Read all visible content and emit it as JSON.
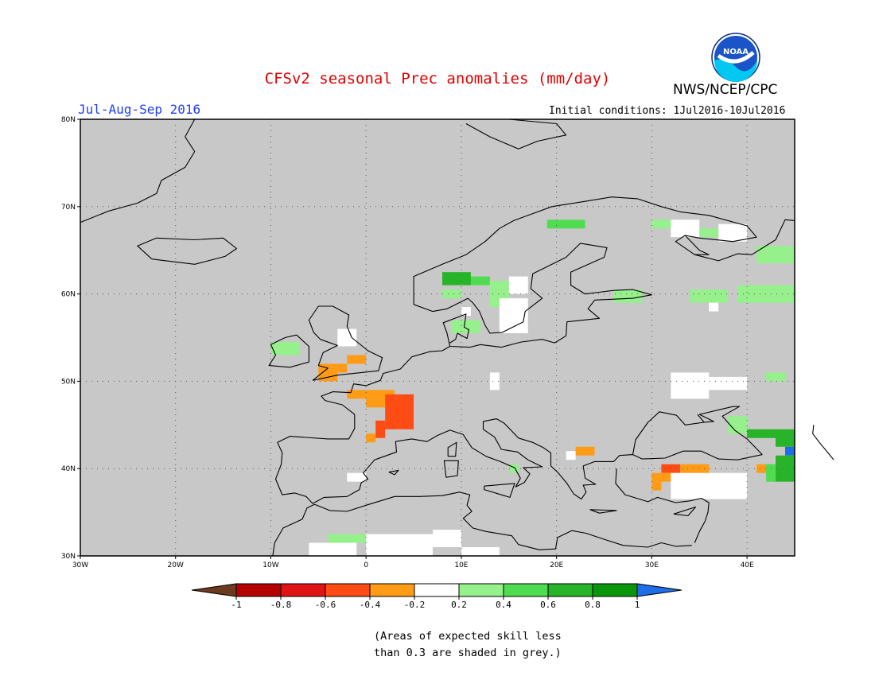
{
  "title": "CFSv2 seasonal Prec anomalies (mm/day)",
  "organization": "NWS/NCEP/CPC",
  "logo_text": "NOAA",
  "period": "Jul-Aug-Sep 2016",
  "initial_conditions": "Initial conditions: 1Jul2016-10Jul2016",
  "note_lines": [
    "(Areas of expected skill less",
    "than 0.3 are shaded in grey.)"
  ],
  "colors": {
    "title": "#e00000",
    "period": "#1c3cff",
    "grey_mask": "#c8c8c8",
    "land_outline": "#000000",
    "noaa_blue": "#1a54c8",
    "noaa_cyan": "#00c8f0"
  },
  "map": {
    "lon_range": [
      -30,
      45
    ],
    "lat_range": [
      30,
      80
    ],
    "lon_ticks": [
      {
        "value": -30,
        "label": "30W"
      },
      {
        "value": -20,
        "label": "20W"
      },
      {
        "value": -10,
        "label": "10W"
      },
      {
        "value": 0,
        "label": "0"
      },
      {
        "value": 10,
        "label": "10E"
      },
      {
        "value": 20,
        "label": "20E"
      },
      {
        "value": 30,
        "label": "30E"
      },
      {
        "value": 40,
        "label": "40E"
      }
    ],
    "lat_ticks": [
      {
        "value": 30,
        "label": "30N"
      },
      {
        "value": 40,
        "label": "40N"
      },
      {
        "value": 50,
        "label": "50N"
      },
      {
        "value": 60,
        "label": "60N"
      },
      {
        "value": 70,
        "label": "70N"
      },
      {
        "value": 80,
        "label": "80N"
      }
    ],
    "anomaly_cells": [
      {
        "lon": 8,
        "lat": 61,
        "w": 3,
        "h": 1.5,
        "cat": "g6"
      },
      {
        "lon": 11,
        "lat": 61,
        "w": 2,
        "h": 1,
        "cat": "g4"
      },
      {
        "lon": 8,
        "lat": 59.5,
        "w": 2,
        "h": 1,
        "cat": "g2"
      },
      {
        "lon": 13,
        "lat": 58.5,
        "w": 2,
        "h": 3,
        "cat": "g2"
      },
      {
        "lon": 15,
        "lat": 60,
        "w": 2,
        "h": 2,
        "cat": "white"
      },
      {
        "lon": 14,
        "lat": 55.5,
        "w": 3,
        "h": 4,
        "cat": "white"
      },
      {
        "lon": 9,
        "lat": 55.5,
        "w": 3,
        "h": 1.5,
        "cat": "g2"
      },
      {
        "lon": 10,
        "lat": 57.5,
        "w": 1,
        "h": 1,
        "cat": "white"
      },
      {
        "lon": 19,
        "lat": 67.5,
        "w": 4,
        "h": 1,
        "cat": "g4"
      },
      {
        "lon": 30,
        "lat": 67.5,
        "w": 2,
        "h": 1,
        "cat": "g2"
      },
      {
        "lon": 32,
        "lat": 66.5,
        "w": 3,
        "h": 2,
        "cat": "white"
      },
      {
        "lon": 35,
        "lat": 66.5,
        "w": 2,
        "h": 1,
        "cat": "g2"
      },
      {
        "lon": 37,
        "lat": 66,
        "w": 3,
        "h": 2,
        "cat": "white"
      },
      {
        "lon": 41,
        "lat": 63.5,
        "w": 4,
        "h": 2,
        "cat": "g2"
      },
      {
        "lon": 26,
        "lat": 59,
        "w": 3,
        "h": 1.5,
        "cat": "g2"
      },
      {
        "lon": 34,
        "lat": 59,
        "w": 4,
        "h": 1.5,
        "cat": "g2"
      },
      {
        "lon": 39,
        "lat": 59,
        "w": 6,
        "h": 2,
        "cat": "g2"
      },
      {
        "lon": 36,
        "lat": 58,
        "w": 1,
        "h": 1,
        "cat": "white"
      },
      {
        "lon": -10,
        "lat": 53,
        "w": 3,
        "h": 1.5,
        "cat": "g2"
      },
      {
        "lon": -3,
        "lat": 54,
        "w": 2,
        "h": 2,
        "cat": "white"
      },
      {
        "lon": -2,
        "lat": 52,
        "w": 2,
        "h": 1,
        "cat": "o4"
      },
      {
        "lon": -5,
        "lat": 51,
        "w": 3,
        "h": 1,
        "cat": "o4"
      },
      {
        "lon": -5,
        "lat": 50,
        "w": 2,
        "h": 1,
        "cat": "o4"
      },
      {
        "lon": -2,
        "lat": 48,
        "w": 5,
        "h": 1,
        "cat": "o4"
      },
      {
        "lon": 0,
        "lat": 47,
        "w": 2,
        "h": 1,
        "cat": "o4"
      },
      {
        "lon": 2,
        "lat": 44.5,
        "w": 3,
        "h": 4,
        "cat": "r6"
      },
      {
        "lon": 1,
        "lat": 43.5,
        "w": 1,
        "h": 2,
        "cat": "r6"
      },
      {
        "lon": 0,
        "lat": 43,
        "w": 1,
        "h": 1,
        "cat": "o4"
      },
      {
        "lon": 32,
        "lat": 48,
        "w": 4,
        "h": 3,
        "cat": "white"
      },
      {
        "lon": 36,
        "lat": 49,
        "w": 4,
        "h": 1.5,
        "cat": "white"
      },
      {
        "lon": 42,
        "lat": 50,
        "w": 2,
        "h": 1,
        "cat": "g2"
      },
      {
        "lon": 38,
        "lat": 44,
        "w": 2,
        "h": 2,
        "cat": "g2"
      },
      {
        "lon": 40,
        "lat": 43.5,
        "w": 3,
        "h": 1,
        "cat": "g6"
      },
      {
        "lon": 43,
        "lat": 42.5,
        "w": 2,
        "h": 2,
        "cat": "g6"
      },
      {
        "lon": 44,
        "lat": 41.5,
        "w": 1,
        "h": 1,
        "cat": "b1"
      },
      {
        "lon": 43,
        "lat": 38.5,
        "w": 2,
        "h": 3,
        "cat": "g6"
      },
      {
        "lon": 42,
        "lat": 38.5,
        "w": 1,
        "h": 2,
        "cat": "g4"
      },
      {
        "lon": 41,
        "lat": 39.5,
        "w": 1,
        "h": 1,
        "cat": "o4"
      },
      {
        "lon": 22,
        "lat": 41.5,
        "w": 2,
        "h": 1,
        "cat": "o4"
      },
      {
        "lon": 21,
        "lat": 41,
        "w": 1,
        "h": 1,
        "cat": "white"
      },
      {
        "lon": 31,
        "lat": 39.5,
        "w": 2,
        "h": 1,
        "cat": "r6"
      },
      {
        "lon": 33,
        "lat": 39.5,
        "w": 3,
        "h": 1,
        "cat": "o4"
      },
      {
        "lon": 30,
        "lat": 38.5,
        "w": 2,
        "h": 1,
        "cat": "o4"
      },
      {
        "lon": 30,
        "lat": 37.5,
        "w": 1,
        "h": 1,
        "cat": "o4"
      },
      {
        "lon": 32,
        "lat": 36.5,
        "w": 8,
        "h": 3,
        "cat": "white"
      },
      {
        "lon": 15,
        "lat": 39.5,
        "w": 1,
        "h": 1,
        "cat": "g2"
      },
      {
        "lon": -4,
        "lat": 31.5,
        "w": 4,
        "h": 1,
        "cat": "g2"
      },
      {
        "lon": -6,
        "lat": 30,
        "w": 5,
        "h": 1.5,
        "cat": "white"
      },
      {
        "lon": 0,
        "lat": 30,
        "w": 7,
        "h": 2.5,
        "cat": "white"
      },
      {
        "lon": 7,
        "lat": 31,
        "w": 3,
        "h": 2,
        "cat": "white"
      },
      {
        "lon": 10,
        "lat": 30,
        "w": 4,
        "h": 1,
        "cat": "white"
      },
      {
        "lon": -2,
        "lat": 38.5,
        "w": 2,
        "h": 1,
        "cat": "white"
      },
      {
        "lon": 13,
        "lat": 49,
        "w": 1,
        "h": 2,
        "cat": "white"
      }
    ]
  },
  "colorbar": {
    "labels": [
      "-1",
      "-0.8",
      "-0.6",
      "-0.4",
      "-0.2",
      "0.2",
      "0.4",
      "0.6",
      "0.8",
      "1"
    ],
    "low_arrow_color": "#6b3a1f",
    "high_arrow_color": "#1e6ee8",
    "boxes": [
      "#b40000",
      "#e01414",
      "#ff4b14",
      "#ff9b14",
      "#ffffff",
      "#96f08c",
      "#50dc50",
      "#28b428",
      "#0a960a"
    ],
    "category_colors": {
      "r8": "#e01414",
      "r6": "#ff4b14",
      "o4": "#ff9b14",
      "white": "#ffffff",
      "g2": "#96f08c",
      "g4": "#50dc50",
      "g6": "#28b428",
      "g8": "#0a960a",
      "b1": "#1e6ee8"
    }
  }
}
